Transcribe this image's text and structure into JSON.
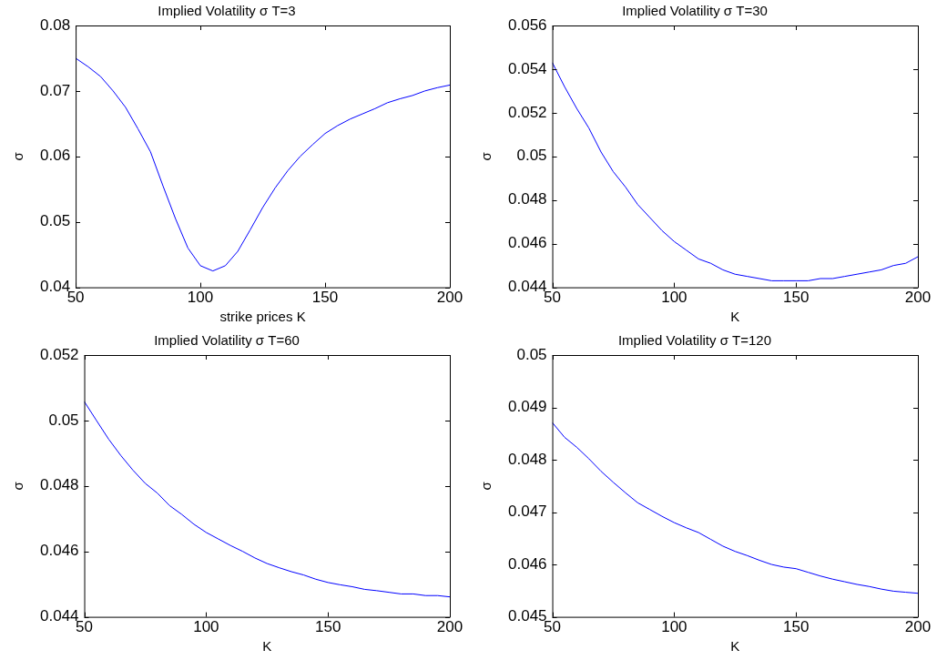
{
  "chart_data": [
    {
      "type": "line",
      "title": "Implied Volatility σ T=3",
      "xlabel": "strike prices K",
      "ylabel": "σ",
      "x": [
        50,
        55,
        60,
        65,
        70,
        75,
        80,
        85,
        90,
        95,
        100,
        105,
        110,
        115,
        120,
        125,
        130,
        135,
        140,
        145,
        150,
        155,
        160,
        165,
        170,
        175,
        180,
        185,
        190,
        195,
        200
      ],
      "series": [
        {
          "color": "#0000ff",
          "values": [
            0.075,
            0.0737,
            0.0722,
            0.07,
            0.0675,
            0.0642,
            0.0607,
            0.0555,
            0.0505,
            0.046,
            0.0433,
            0.0425,
            0.0433,
            0.0455,
            0.0488,
            0.0522,
            0.0552,
            0.0578,
            0.06,
            0.0618,
            0.0635,
            0.0647,
            0.0657,
            0.0665,
            0.0673,
            0.0682,
            0.0688,
            0.0693,
            0.07,
            0.0705,
            0.0709
          ]
        }
      ],
      "xlim": [
        50,
        200
      ],
      "xticks": [
        50,
        100,
        150,
        200
      ],
      "ylim": [
        0.04,
        0.08
      ],
      "yticks": [
        0.04,
        0.05,
        0.06,
        0.07,
        0.08
      ],
      "grid": false,
      "legend": false,
      "marker": "none",
      "line_style": "solid"
    },
    {
      "type": "line",
      "title": "Implied Volatility σ T=30",
      "xlabel": "K",
      "ylabel": "σ",
      "x": [
        50,
        55,
        60,
        65,
        70,
        75,
        80,
        85,
        90,
        95,
        100,
        105,
        110,
        115,
        120,
        125,
        130,
        135,
        140,
        145,
        150,
        155,
        160,
        165,
        170,
        175,
        180,
        185,
        190,
        195,
        200
      ],
      "series": [
        {
          "color": "#0000ff",
          "values": [
            0.0543,
            0.0532,
            0.0522,
            0.0513,
            0.0502,
            0.0493,
            0.0486,
            0.0478,
            0.0472,
            0.0466,
            0.0461,
            0.0457,
            0.0453,
            0.0451,
            0.0448,
            0.0446,
            0.0445,
            0.0444,
            0.0443,
            0.0443,
            0.0443,
            0.0443,
            0.0444,
            0.0444,
            0.0445,
            0.0446,
            0.0447,
            0.0448,
            0.045,
            0.0451,
            0.0454
          ]
        }
      ],
      "xlim": [
        50,
        200
      ],
      "xticks": [
        50,
        100,
        150,
        200
      ],
      "ylim": [
        0.044,
        0.056
      ],
      "yticks": [
        0.044,
        0.046,
        0.048,
        0.05,
        0.052,
        0.054,
        0.056
      ],
      "grid": false,
      "legend": false,
      "marker": "none",
      "line_style": "solid"
    },
    {
      "type": "line",
      "title": "Implied Volatility σ T=60",
      "xlabel": "K",
      "ylabel": "σ",
      "x": [
        50,
        55,
        60,
        65,
        70,
        75,
        80,
        85,
        90,
        95,
        100,
        105,
        110,
        115,
        120,
        125,
        130,
        135,
        140,
        145,
        150,
        155,
        160,
        165,
        170,
        175,
        180,
        185,
        190,
        195,
        200
      ],
      "series": [
        {
          "color": "#0000ff",
          "values": [
            0.05058,
            0.05,
            0.04943,
            0.04893,
            0.04848,
            0.04808,
            0.04778,
            0.0474,
            0.04713,
            0.04683,
            0.04658,
            0.04638,
            0.04618,
            0.046,
            0.0458,
            0.04563,
            0.0455,
            0.04538,
            0.04528,
            0.04515,
            0.04505,
            0.04498,
            0.04492,
            0.04484,
            0.0448,
            0.04475,
            0.0447,
            0.0447,
            0.04465,
            0.04465,
            0.04461
          ]
        }
      ],
      "xlim": [
        50,
        200
      ],
      "xticks": [
        50,
        100,
        150,
        200
      ],
      "ylim": [
        0.044,
        0.052
      ],
      "yticks": [
        0.044,
        0.046,
        0.048,
        0.05,
        0.052
      ],
      "grid": false,
      "legend": false,
      "marker": "none",
      "line_style": "solid"
    },
    {
      "type": "line",
      "title": "Implied Volatility σ T=120",
      "xlabel": "K",
      "ylabel": "σ",
      "x": [
        50,
        55,
        60,
        65,
        70,
        75,
        80,
        85,
        90,
        95,
        100,
        105,
        110,
        115,
        120,
        125,
        130,
        135,
        140,
        145,
        150,
        155,
        160,
        165,
        170,
        175,
        180,
        185,
        190,
        195,
        200
      ],
      "series": [
        {
          "color": "#0000ff",
          "values": [
            0.04871,
            0.04843,
            0.04824,
            0.04802,
            0.04778,
            0.04757,
            0.04737,
            0.04718,
            0.04705,
            0.04692,
            0.0468,
            0.0467,
            0.04661,
            0.04648,
            0.04635,
            0.04625,
            0.04617,
            0.04608,
            0.046,
            0.04595,
            0.04592,
            0.04585,
            0.04578,
            0.04572,
            0.04567,
            0.04562,
            0.04558,
            0.04553,
            0.04549,
            0.04547,
            0.04545
          ]
        }
      ],
      "xlim": [
        50,
        200
      ],
      "xticks": [
        50,
        100,
        150,
        200
      ],
      "ylim": [
        0.045,
        0.05
      ],
      "yticks": [
        0.045,
        0.046,
        0.047,
        0.048,
        0.049,
        0.05
      ],
      "grid": false,
      "legend": false,
      "marker": "none",
      "line_style": "solid"
    }
  ]
}
